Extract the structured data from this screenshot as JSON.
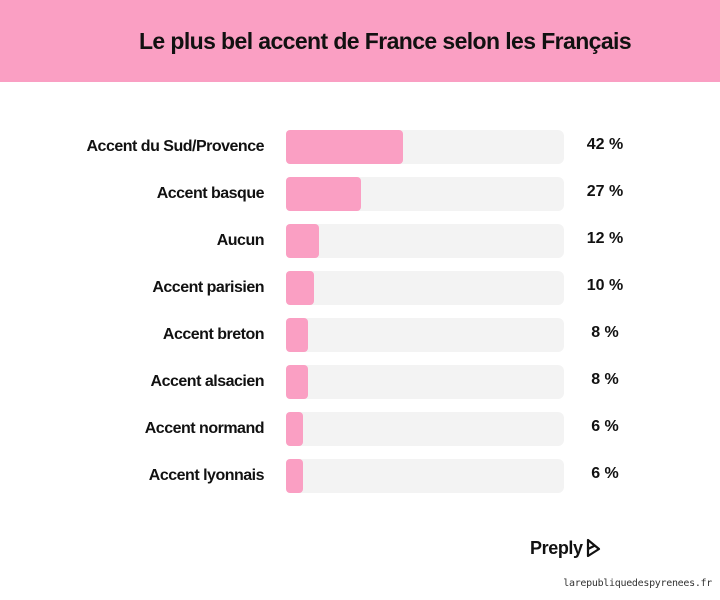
{
  "header": {
    "title": "Le plus bel accent de France selon les Français"
  },
  "colors": {
    "header_background": "#fa9fc3",
    "bar_fill": "#fa9fc3",
    "bar_track": "#f3f3f3"
  },
  "chart_data": {
    "type": "bar",
    "orientation": "horizontal",
    "title": "Le plus bel accent de France selon les Français",
    "categories": [
      "Accent du Sud/Provence",
      "Accent basque",
      "Aucun",
      "Accent parisien",
      "Accent breton",
      "Accent alsacien",
      "Accent normand",
      "Accent lyonnais"
    ],
    "values": [
      42,
      27,
      12,
      10,
      8,
      8,
      6,
      6
    ],
    "value_labels": [
      "42 %",
      "27 %",
      "12 %",
      "10 %",
      "8 %",
      "8 %",
      "6 %",
      "6 %"
    ],
    "xlim": [
      0,
      100
    ],
    "grid": false,
    "legend": "none"
  },
  "branding": {
    "name": "Preply",
    "icon": "preply-logo-icon"
  },
  "source": {
    "text": "larepubliquedespyrenees.fr"
  }
}
